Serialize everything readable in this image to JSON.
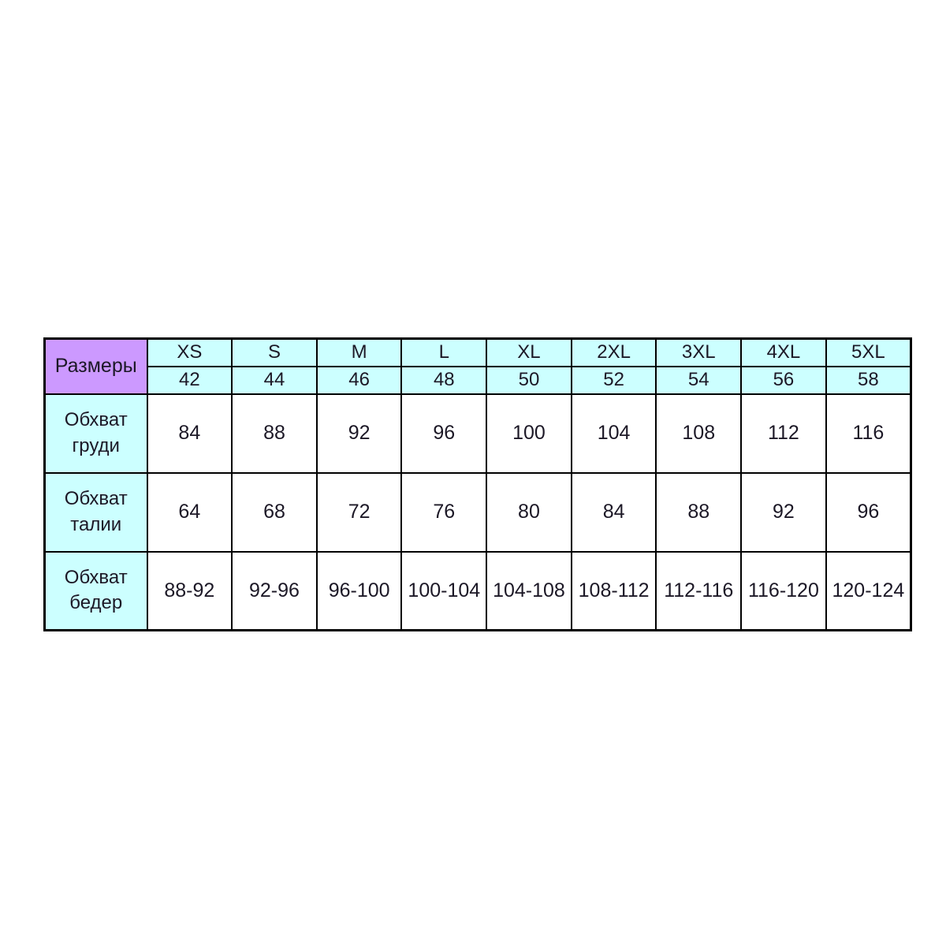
{
  "chart_data": {
    "type": "table",
    "corner_label": "Размеры",
    "column_headers_sizes": [
      "XS",
      "S",
      "M",
      "L",
      "XL",
      "2XL",
      "3XL",
      "4XL",
      "5XL"
    ],
    "column_headers_numbers": [
      "42",
      "44",
      "46",
      "48",
      "50",
      "52",
      "54",
      "56",
      "58"
    ],
    "rows": [
      {
        "label": "Обхват\nгруди",
        "values": [
          "84",
          "88",
          "92",
          "96",
          "100",
          "104",
          "108",
          "112",
          "116"
        ]
      },
      {
        "label": "Обхват\nталии",
        "values": [
          "64",
          "68",
          "72",
          "76",
          "80",
          "84",
          "88",
          "92",
          "96"
        ]
      },
      {
        "label": "Обхват\nбедер",
        "values": [
          "88-92",
          "92-96",
          "96-100",
          "100-104",
          "104-108",
          "108-112",
          "112-116",
          "116-120",
          "120-124"
        ]
      }
    ],
    "colors": {
      "corner_bg": "#cc99ff",
      "header_bg": "#ccffff",
      "row_label_bg": "#ccffff",
      "data_bg": "#ffffff",
      "border": "#000000",
      "text": "#1c1826",
      "page_bg": "#ffffff"
    }
  }
}
